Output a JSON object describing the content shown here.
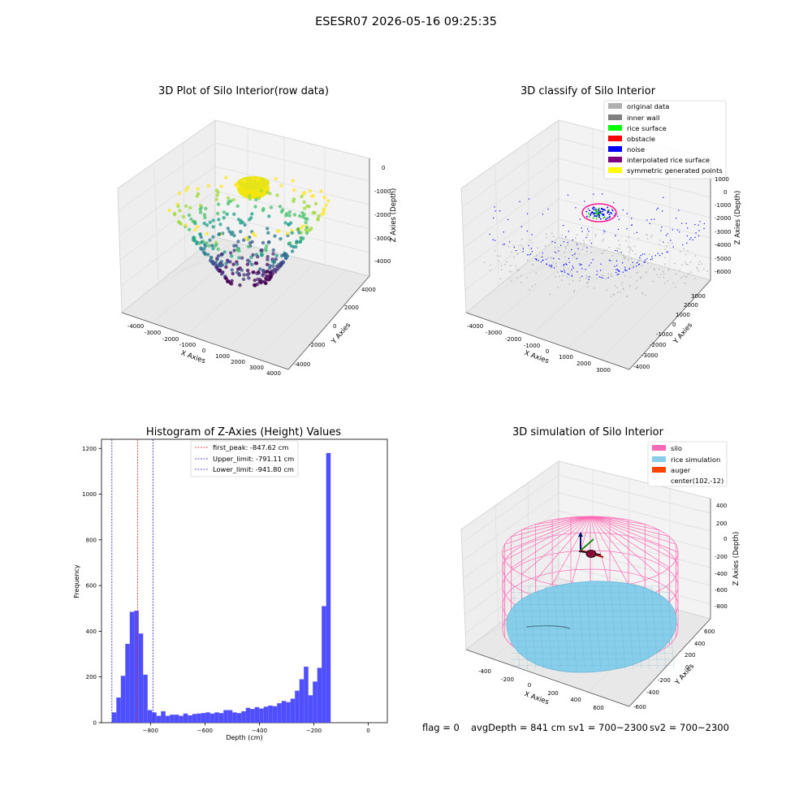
{
  "suptitle": "ESESR07 2026-05-16 09:25:35",
  "footer": {
    "flag": "flag = 0",
    "avg_depth": "avgDepth = 841 cm",
    "sv1": "sv1 = 700~2300",
    "sv2": "sv2 = 700~2300"
  },
  "colors": {
    "hist_bar": "#4f4fff",
    "peak_line": "#e41a1c",
    "limit_line": "#1f1fcf",
    "silo_wire": "#ff69b4",
    "rice": "#87ceeb",
    "auger": "#ff4500",
    "pane": "#f2f2f2"
  },
  "chart_data": [
    {
      "type": "scatter",
      "title": "3D Plot of Silo Interior(row data)",
      "xlabel": "X Axies",
      "ylabel": "Y Axies",
      "zlabel": "Z Axies (Depth)",
      "x_ticks": [
        "-4000",
        "-3000",
        "-2000",
        "-1000",
        "0",
        "1000",
        "2000",
        "3000",
        "4000"
      ],
      "y_ticks": [
        "-4000",
        "-2000",
        "0",
        "2000",
        "4000"
      ],
      "z_ticks": [
        "0",
        "-1000",
        "-2000",
        "-3000",
        "-4000"
      ],
      "colormap": "viridis (by depth)"
    },
    {
      "type": "scatter",
      "title": "3D classify of Silo Interior",
      "xlabel": "X Axies",
      "ylabel": "Y Axies",
      "zlabel": "Z Axies (Depth)",
      "x_ticks": [
        "-4000",
        "-3000",
        "-2000",
        "-1000",
        "0",
        "1000",
        "2000",
        "3000"
      ],
      "y_ticks": [
        "-4000",
        "-3000",
        "-2000",
        "-1000",
        "0",
        "1000",
        "2000",
        "3000"
      ],
      "z_ticks": [
        "1000",
        "0",
        "-1000",
        "-2000",
        "-3000",
        "-4000",
        "-5000",
        "-6000"
      ],
      "legend": [
        {
          "label": "original data",
          "color": "#b0b0b0"
        },
        {
          "label": "inner wall",
          "color": "#808080"
        },
        {
          "label": "rice surface",
          "color": "#00ff00"
        },
        {
          "label": "obstacle",
          "color": "#ff0000"
        },
        {
          "label": "noise",
          "color": "#0000ff"
        },
        {
          "label": "interpolated rice surface",
          "color": "#800080"
        },
        {
          "label": "symmetric generated points",
          "color": "#ffff00"
        }
      ]
    },
    {
      "type": "bar",
      "title": "Histogram of Z-Axies (Height) Values",
      "xlabel": "Depth (cm)",
      "ylabel": "Frequency",
      "xlim": [
        -980,
        70
      ],
      "ylim": [
        0,
        1240
      ],
      "x_ticks": [
        -800,
        -600,
        -400,
        -200,
        0
      ],
      "y_ticks": [
        0,
        200,
        400,
        600,
        800,
        1000,
        1200
      ],
      "bin_width": 16.4,
      "bins": [
        {
          "left": -941.8,
          "value": 45
        },
        {
          "left": -925.4,
          "value": 110
        },
        {
          "left": -909.0,
          "value": 205
        },
        {
          "left": -892.6,
          "value": 345
        },
        {
          "left": -876.2,
          "value": 485
        },
        {
          "left": -859.8,
          "value": 490
        },
        {
          "left": -843.4,
          "value": 390
        },
        {
          "left": -827.0,
          "value": 210
        },
        {
          "left": -810.6,
          "value": 55
        },
        {
          "left": -794.2,
          "value": 45
        },
        {
          "left": -777.8,
          "value": 30
        },
        {
          "left": -761.4,
          "value": 50
        },
        {
          "left": -745.0,
          "value": 30
        },
        {
          "left": -728.6,
          "value": 35
        },
        {
          "left": -712.2,
          "value": 35
        },
        {
          "left": -695.8,
          "value": 30
        },
        {
          "left": -679.4,
          "value": 40
        },
        {
          "left": -663.0,
          "value": 32
        },
        {
          "left": -646.6,
          "value": 38
        },
        {
          "left": -630.2,
          "value": 40
        },
        {
          "left": -613.8,
          "value": 42
        },
        {
          "left": -597.4,
          "value": 45
        },
        {
          "left": -581.0,
          "value": 40
        },
        {
          "left": -564.6,
          "value": 45
        },
        {
          "left": -548.2,
          "value": 42
        },
        {
          "left": -531.8,
          "value": 55
        },
        {
          "left": -515.4,
          "value": 55
        },
        {
          "left": -499.0,
          "value": 45
        },
        {
          "left": -482.6,
          "value": 42
        },
        {
          "left": -466.2,
          "value": 50
        },
        {
          "left": -449.8,
          "value": 65
        },
        {
          "left": -433.4,
          "value": 60
        },
        {
          "left": -417.0,
          "value": 68
        },
        {
          "left": -400.6,
          "value": 62
        },
        {
          "left": -384.2,
          "value": 70
        },
        {
          "left": -367.8,
          "value": 75
        },
        {
          "left": -351.4,
          "value": 72
        },
        {
          "left": -335.0,
          "value": 85
        },
        {
          "left": -318.6,
          "value": 95
        },
        {
          "left": -302.2,
          "value": 90
        },
        {
          "left": -285.8,
          "value": 105
        },
        {
          "left": -269.4,
          "value": 140
        },
        {
          "left": -253.0,
          "value": 190
        },
        {
          "left": -236.6,
          "value": 245
        },
        {
          "left": -220.2,
          "value": 120
        },
        {
          "left": -203.8,
          "value": 180
        },
        {
          "left": -187.4,
          "value": 240
        },
        {
          "left": -171.0,
          "value": 510
        },
        {
          "left": -154.6,
          "value": 1180
        }
      ],
      "vlines": [
        {
          "label": "first_peak: -847.62 cm",
          "x": -847.62,
          "color": "#e41a1c"
        },
        {
          "label": "Upper_limit: -791.11 cm",
          "x": -791.11,
          "color": "#1f1fcf"
        },
        {
          "label": "Lower_limit: -941.80 cm",
          "x": -941.8,
          "color": "#1f1fcf"
        }
      ]
    },
    {
      "type": "scatter",
      "title": "3D simulation of Silo Interior",
      "xlabel": "X Axies",
      "ylabel": "Y Axies",
      "zlabel": "Z Axies (Depth)",
      "x_ticks": [
        "-400",
        "-200",
        "0",
        "200",
        "400",
        "600"
      ],
      "y_ticks": [
        "-600",
        "-400",
        "-200",
        "0",
        "200",
        "400",
        "600"
      ],
      "z_ticks": [
        "400",
        "200",
        "0",
        "-200",
        "-400",
        "-600",
        "-800"
      ],
      "legend": [
        {
          "label": "silo",
          "color": "#ff69b4"
        },
        {
          "label": "rice simulation",
          "color": "#87ceeb"
        },
        {
          "label": "auger",
          "color": "#ff4500"
        },
        {
          "label": "center(102,-12)",
          "color": ""
        }
      ]
    }
  ]
}
